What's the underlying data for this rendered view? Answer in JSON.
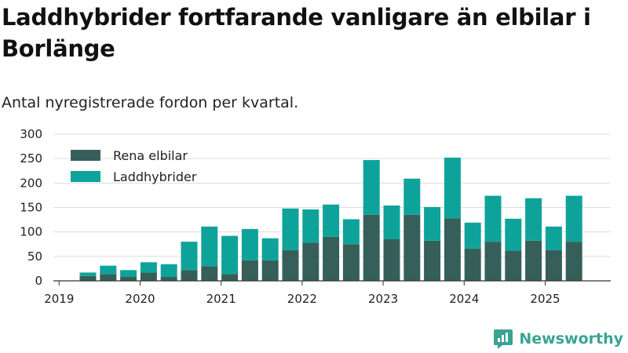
{
  "title": "Laddhybrider fortfarande vanligare än elbilar i Borlänge",
  "subtitle": "Antal nyregistrerade fordon per kvartal.",
  "brand": "Newsworthy",
  "colors": {
    "rena_elbilar": "#365f5a",
    "laddhybrider": "#0ea39a",
    "brand": "#3aa394"
  },
  "chart_data": {
    "type": "bar",
    "stacked": true,
    "categories": [
      "2019 Q2",
      "2019 Q3",
      "2019 Q4",
      "2020 Q1",
      "2020 Q2",
      "2020 Q3",
      "2020 Q4",
      "2021 Q1",
      "2021 Q2",
      "2021 Q3",
      "2021 Q4",
      "2022 Q1",
      "2022 Q2",
      "2022 Q3",
      "2022 Q4",
      "2023 Q1",
      "2023 Q2",
      "2023 Q3",
      "2023 Q4",
      "2024 Q1",
      "2024 Q2",
      "2024 Q3",
      "2024 Q4",
      "2025 Q1",
      "2025 Q2"
    ],
    "x_tick_labels": [
      "2019",
      "2020",
      "2021",
      "2022",
      "2023",
      "2024",
      "2025"
    ],
    "y_ticks": [
      0,
      50,
      100,
      150,
      200,
      250,
      300
    ],
    "ylim": [
      0,
      300
    ],
    "grid": true,
    "legend_position": "top-left",
    "series": [
      {
        "name": "Rena elbilar",
        "color": "#365f5a",
        "values": [
          10,
          14,
          8,
          17,
          8,
          22,
          30,
          14,
          42,
          42,
          63,
          78,
          90,
          75,
          135,
          85,
          135,
          82,
          128,
          66,
          80,
          62,
          82,
          63,
          80
        ]
      },
      {
        "name": "Laddhybrider",
        "color": "#0ea39a",
        "values": [
          7,
          17,
          14,
          21,
          26,
          58,
          81,
          78,
          64,
          45,
          85,
          68,
          66,
          51,
          112,
          69,
          74,
          69,
          124,
          53,
          94,
          65,
          87,
          48,
          94
        ]
      }
    ]
  }
}
